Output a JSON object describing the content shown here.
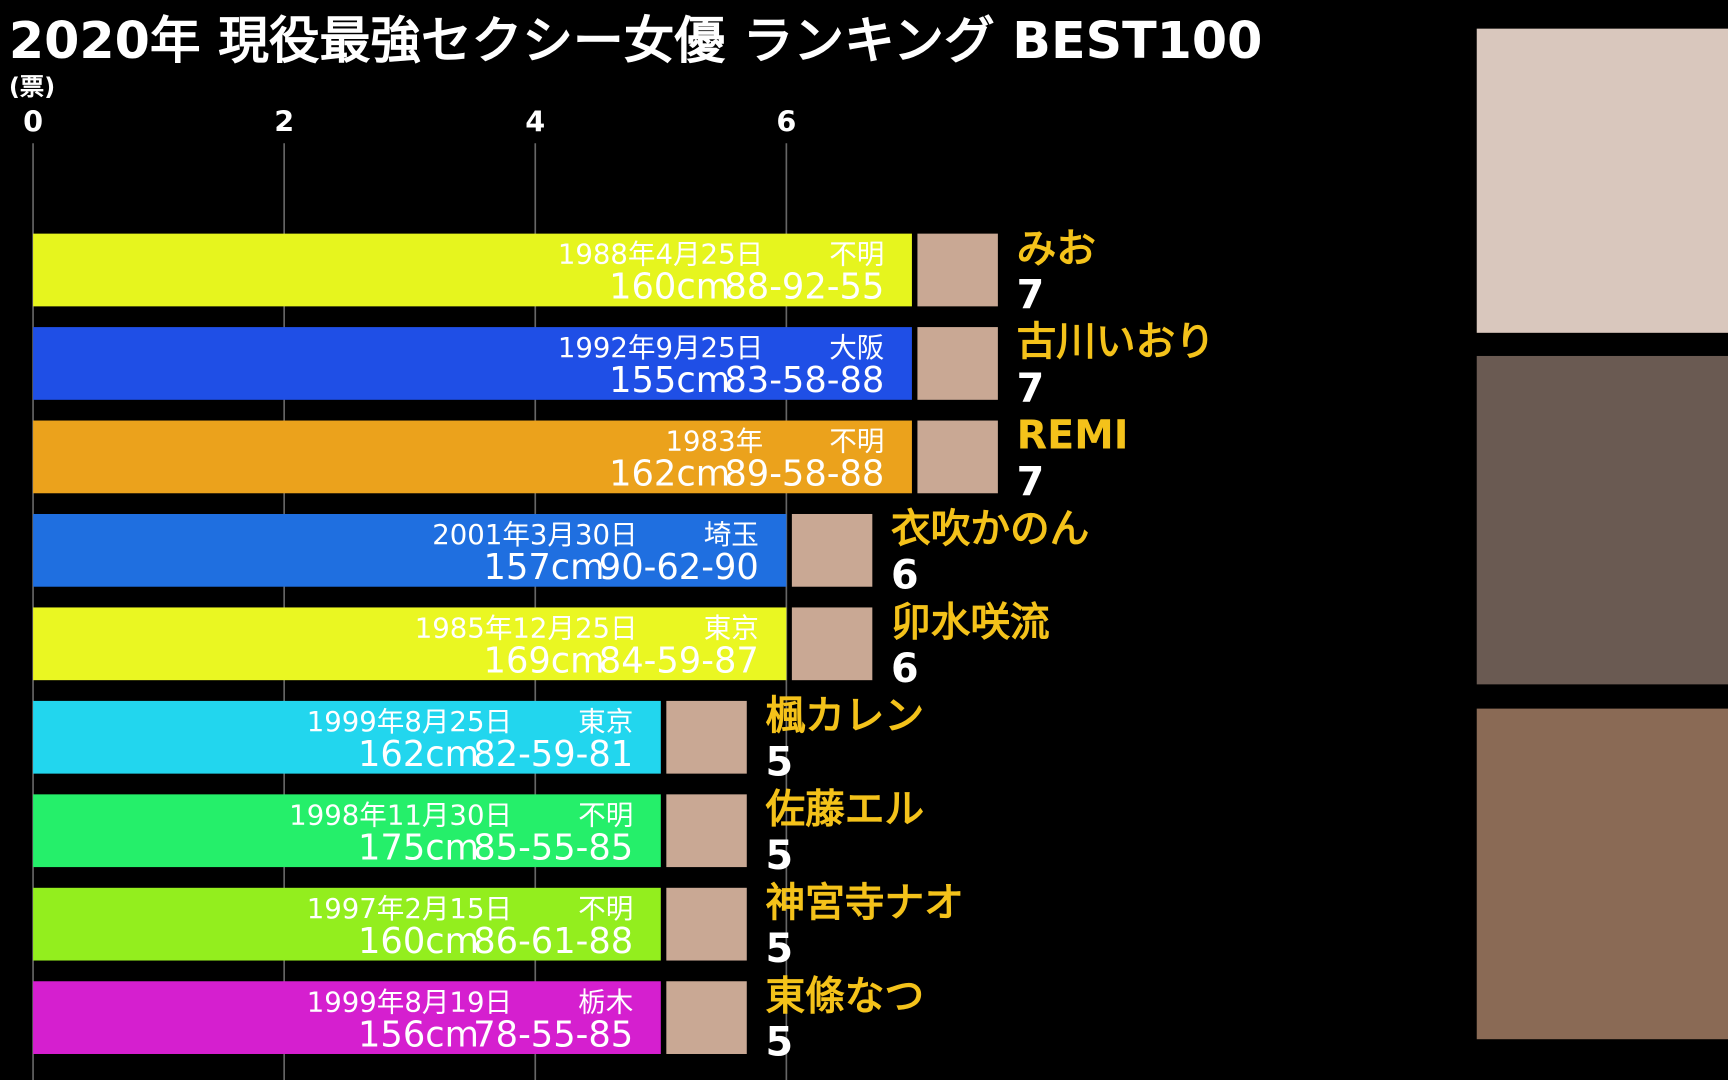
{
  "chart_data": {
    "type": "bar",
    "orientation": "horizontal",
    "title": "2020年 現役最強セクシー女優 ランキング BEST100",
    "x_label": "(票)",
    "xlim": [
      0,
      13.5
    ],
    "xticks": [
      0,
      2,
      4,
      6
    ],
    "grid": true,
    "categories": [
      "みお",
      "古川いおり",
      "REMI",
      "衣吹かのん",
      "卯水咲流",
      "楓カレン",
      "佐藤エル",
      "神宮寺ナオ",
      "東條なつ"
    ],
    "values": [
      7,
      7,
      7,
      6,
      6,
      5,
      5,
      5,
      5
    ],
    "colors": [
      "#e6f51e",
      "#1f4fe6",
      "#eba21c",
      "#1f6fe0",
      "#eaf722",
      "#22d6ee",
      "#25ef6a",
      "#93ee1e",
      "#d51fcf"
    ],
    "birth": [
      "1988年4月25日",
      "1992年9月25日",
      "1983年",
      "2001年3月30日",
      "1985年12月25日",
      "1999年8月25日",
      "1998年11月30日",
      "1997年2月15日",
      "1999年8月19日"
    ],
    "origin": [
      "不明",
      "大阪",
      "不明",
      "埼玉",
      "東京",
      "東京",
      "不明",
      "不明",
      "栃木"
    ],
    "height": [
      "160cm",
      "155cm",
      "162cm",
      "157cm",
      "169cm",
      "162cm",
      "175cm",
      "160cm",
      "156cm"
    ],
    "measurements": [
      "88-92-55",
      "83-58-88",
      "89-58-88",
      "90-62-90",
      "84-59-87",
      "82-59-81",
      "85-55-85",
      "86-61-88",
      "78-55-85"
    ]
  }
}
